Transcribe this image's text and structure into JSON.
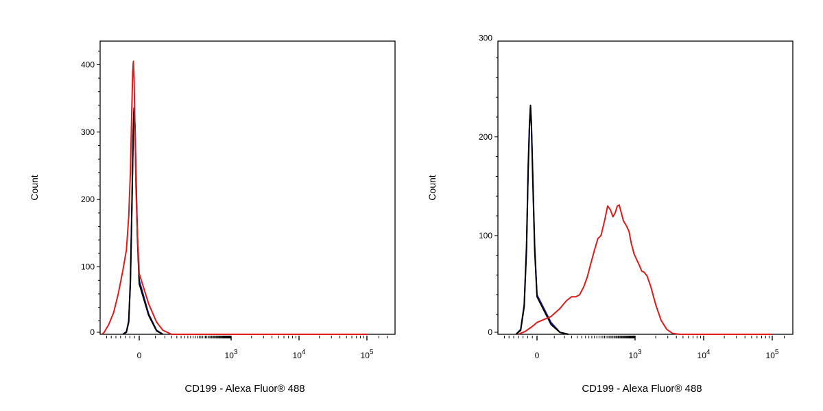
{
  "chart_data": [
    {
      "type": "line",
      "xlabel": "CD199 - Alexa Fluor® 488",
      "ylabel": "Count",
      "y_ticks": [
        "0",
        "100",
        "200",
        "300",
        "400"
      ],
      "ylim": [
        0,
        435
      ],
      "x_scale": "biexponential",
      "x_ticks": [
        {
          "label": "0",
          "value": 0
        },
        {
          "label": "10",
          "sup": "3",
          "value": 1000
        },
        {
          "label": "10",
          "sup": "4",
          "value": 10000
        },
        {
          "label": "10",
          "sup": "5",
          "value": 100000
        }
      ],
      "grid": false,
      "legend": "none",
      "series": [
        {
          "color": "#1a1aa8",
          "points": [
            [
              -70,
              0
            ],
            [
              -55,
              4
            ],
            [
              -45,
              20
            ],
            [
              -38,
              80
            ],
            [
              -32,
              180
            ],
            [
              -28,
              260
            ],
            [
              -25,
              310
            ],
            [
              -22,
              335
            ],
            [
              -18,
              310
            ],
            [
              -14,
              240
            ],
            [
              -8,
              150
            ],
            [
              0,
              80
            ],
            [
              10,
              30
            ],
            [
              22,
              6
            ],
            [
              35,
              0
            ]
          ]
        },
        {
          "color": "#000000",
          "points": [
            [
              -70,
              0
            ],
            [
              -55,
              3
            ],
            [
              -45,
              18
            ],
            [
              -38,
              75
            ],
            [
              -32,
              175
            ],
            [
              -28,
              255
            ],
            [
              -25,
              310
            ],
            [
              -22,
              336
            ],
            [
              -18,
              305
            ],
            [
              -14,
              235
            ],
            [
              -8,
              145
            ],
            [
              0,
              75
            ],
            [
              10,
              28
            ],
            [
              22,
              5
            ],
            [
              35,
              0
            ]
          ]
        },
        {
          "color": "#e01a1a",
          "points": [
            [
              -160,
              0
            ],
            [
              -150,
              3
            ],
            [
              -130,
              15
            ],
            [
              -110,
              32
            ],
            [
              -90,
              60
            ],
            [
              -70,
              95
            ],
            [
              -55,
              125
            ],
            [
              -45,
              175
            ],
            [
              -38,
              240
            ],
            [
              -32,
              330
            ],
            [
              -28,
              390
            ],
            [
              -25,
              405
            ],
            [
              -22,
              380
            ],
            [
              -18,
              300
            ],
            [
              -14,
              220
            ],
            [
              -8,
              150
            ],
            [
              0,
              90
            ],
            [
              10,
              45
            ],
            [
              22,
              18
            ],
            [
              35,
              6
            ],
            [
              60,
              0
            ],
            [
              100000,
              0
            ]
          ]
        }
      ]
    },
    {
      "type": "line",
      "xlabel": "CD199 - Alexa Fluor® 488",
      "ylabel": "Count",
      "y_ticks": [
        "0",
        "100",
        "200",
        "300"
      ],
      "ylim": [
        0,
        297
      ],
      "x_scale": "biexponential",
      "x_ticks": [
        {
          "label": "0",
          "value": 0
        },
        {
          "label": "10",
          "sup": "3",
          "value": 1000
        },
        {
          "label": "10",
          "sup": "4",
          "value": 10000
        },
        {
          "label": "10",
          "sup": "5",
          "value": 100000
        }
      ],
      "grid": false,
      "legend": "none",
      "series": [
        {
          "color": "#1a1aa8",
          "points": [
            [
              -90,
              0
            ],
            [
              -70,
              5
            ],
            [
              -55,
              30
            ],
            [
              -45,
              90
            ],
            [
              -38,
              170
            ],
            [
              -32,
              215
            ],
            [
              -28,
              230
            ],
            [
              -24,
              215
            ],
            [
              -18,
              160
            ],
            [
              -10,
              90
            ],
            [
              0,
              40
            ],
            [
              15,
              12
            ],
            [
              30,
              2
            ],
            [
              50,
              0
            ]
          ]
        },
        {
          "color": "#000000",
          "points": [
            [
              -90,
              0
            ],
            [
              -70,
              4
            ],
            [
              -55,
              28
            ],
            [
              -45,
              85
            ],
            [
              -38,
              165
            ],
            [
              -32,
              212
            ],
            [
              -28,
              232
            ],
            [
              -24,
              212
            ],
            [
              -18,
              155
            ],
            [
              -10,
              85
            ],
            [
              0,
              38
            ],
            [
              15,
              10
            ],
            [
              30,
              2
            ],
            [
              50,
              0
            ]
          ]
        },
        {
          "color": "#e01a1a",
          "points": [
            [
              -80,
              0
            ],
            [
              -50,
              3
            ],
            [
              -20,
              8
            ],
            [
              0,
              12
            ],
            [
              15,
              18
            ],
            [
              30,
              26
            ],
            [
              45,
              34
            ],
            [
              60,
              38
            ],
            [
              75,
              38
            ],
            [
              90,
              40
            ],
            [
              110,
              48
            ],
            [
              130,
              58
            ],
            [
              150,
              70
            ],
            [
              180,
              85
            ],
            [
              210,
              97
            ],
            [
              240,
              100
            ],
            [
              280,
              115
            ],
            [
              320,
              130
            ],
            [
              360,
              126
            ],
            [
              400,
              119
            ],
            [
              440,
              123
            ],
            [
              480,
              130
            ],
            [
              520,
              131
            ],
            [
              560,
              124
            ],
            [
              620,
              115
            ],
            [
              700,
              110
            ],
            [
              780,
              104
            ],
            [
              850,
              93
            ],
            [
              950,
              82
            ],
            [
              1050,
              76
            ],
            [
              1150,
              70
            ],
            [
              1250,
              64
            ],
            [
              1350,
              63
            ],
            [
              1500,
              59
            ],
            [
              1700,
              48
            ],
            [
              2000,
              30
            ],
            [
              2400,
              14
            ],
            [
              2900,
              5
            ],
            [
              3500,
              1
            ],
            [
              4500,
              0
            ],
            [
              100000,
              0
            ]
          ]
        }
      ]
    }
  ]
}
